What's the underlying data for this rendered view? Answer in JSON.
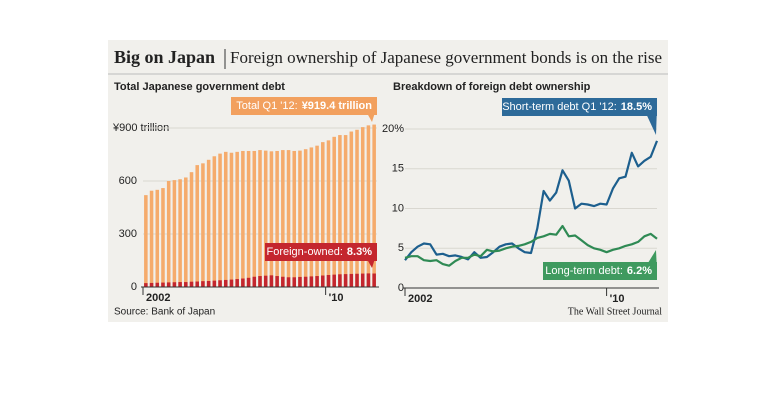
{
  "title": "Big on Japan",
  "subtitle": "Foreign ownership of Japanese government bonds is on the rise",
  "source": "Source: Bank of Japan",
  "credit": "The Wall Street Journal",
  "chart_data": [
    {
      "type": "bar",
      "title": "Total Japanese government debt",
      "categories": [
        "2002",
        null,
        null,
        null,
        null,
        null,
        null,
        null,
        null,
        null,
        null,
        null,
        null,
        null,
        null,
        null,
        null,
        null,
        null,
        null,
        null,
        null,
        null,
        null,
        null,
        null,
        null,
        null,
        null,
        null,
        null,
        null,
        "'10",
        null,
        null,
        null,
        null,
        null,
        null,
        null,
        null
      ],
      "series": [
        {
          "color": "#f5ab6c",
          "values": [
            520,
            545,
            550,
            560,
            600,
            605,
            610,
            620,
            650,
            690,
            700,
            720,
            740,
            755,
            765,
            760,
            765,
            770,
            770,
            770,
            775,
            772,
            768,
            770,
            775,
            775,
            770,
            772,
            780,
            790,
            800,
            820,
            830,
            850,
            860,
            860,
            880,
            890,
            905,
            915,
            919.4
          ]
        },
        {
          "color": "#c4262e",
          "values": [
            22,
            23,
            24,
            25,
            26,
            27,
            28,
            28,
            30,
            31,
            33,
            34,
            36,
            38,
            40,
            42,
            45,
            48,
            52,
            58,
            62,
            64,
            66,
            62,
            58,
            55,
            55,
            57,
            58,
            60,
            62,
            65,
            68,
            70,
            72,
            73,
            74,
            75,
            76,
            77,
            76.3
          ]
        }
      ],
      "annotations": [
        {
          "text": "Total Q1 '12:",
          "value_label": "¥919.4 trillion",
          "color": "#f2a05e"
        },
        {
          "text": "Foreign-owned:",
          "value_label": "8.3%",
          "color": "#c4262e"
        }
      ],
      "ylim": [
        0,
        900
      ],
      "yticks": [
        0,
        300,
        600,
        {
          "value": 900,
          "label": "¥900 trillion"
        }
      ],
      "grid": true
    },
    {
      "type": "line",
      "title": "Breakdown of foreign debt ownership",
      "categories": [
        "2002",
        null,
        null,
        null,
        null,
        null,
        null,
        null,
        null,
        null,
        null,
        null,
        null,
        null,
        null,
        null,
        null,
        null,
        null,
        null,
        null,
        null,
        null,
        null,
        null,
        null,
        null,
        null,
        null,
        null,
        null,
        null,
        "'10",
        null,
        null,
        null,
        null,
        null,
        null,
        null,
        null
      ],
      "series": [
        {
          "color": "#1d5f8e",
          "values": [
            3.5,
            4.5,
            5.2,
            5.6,
            5.5,
            4.2,
            4.3,
            4.0,
            4.1,
            3.9,
            3.6,
            4.5,
            3.8,
            3.9,
            4.5,
            5.2,
            5.5,
            5.6,
            5.0,
            4.5,
            4.4,
            7.5,
            12.2,
            11.0,
            12.0,
            14.8,
            13.5,
            10.0,
            10.6,
            10.5,
            10.3,
            10.6,
            10.5,
            12.5,
            13.8,
            14.0,
            17.0,
            15.3,
            16.0,
            16.5,
            18.5
          ]
        },
        {
          "color": "#2f8a54",
          "values": [
            3.8,
            4.0,
            4.0,
            3.5,
            3.4,
            3.5,
            3.0,
            2.8,
            3.4,
            3.8,
            3.8,
            4.2,
            4.0,
            4.8,
            4.6,
            4.7,
            5.0,
            5.2,
            5.3,
            5.5,
            5.8,
            6.3,
            6.5,
            6.8,
            6.7,
            7.8,
            6.5,
            6.6,
            6.0,
            5.4,
            5.0,
            4.8,
            4.5,
            4.8,
            5.0,
            5.3,
            5.5,
            5.8,
            6.5,
            6.8,
            6.2
          ]
        }
      ],
      "annotations": [
        {
          "text": "Short-term debt Q1 '12:",
          "value_label": "18.5%",
          "color": "#2d6a99"
        },
        {
          "text": "Long-term debt:",
          "value_label": "6.2%",
          "color": "#3f9a5f"
        }
      ],
      "ylim": [
        0,
        20
      ],
      "yticks": [
        0,
        5,
        10,
        15,
        {
          "value": 20,
          "label": "20%"
        }
      ],
      "grid": true
    }
  ]
}
